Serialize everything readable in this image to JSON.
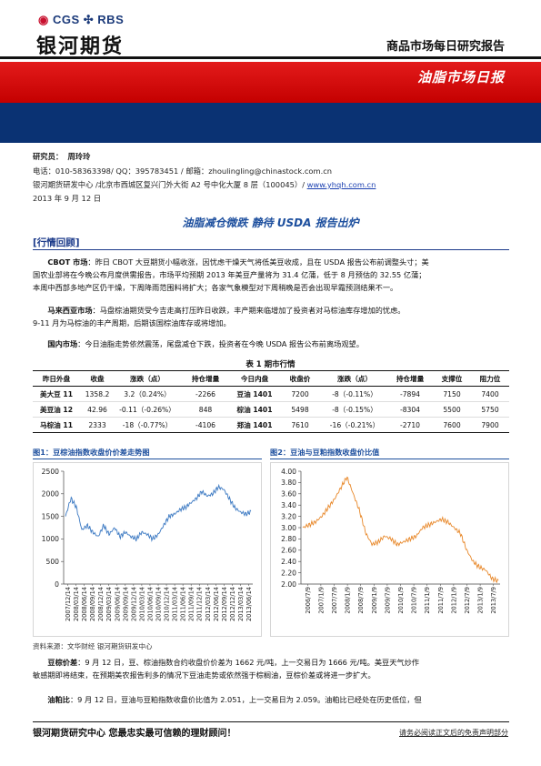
{
  "header": {
    "logo_cgs": "CGS",
    "logo_rbs": "RBS",
    "logo_name": "银河期货",
    "report_type": "商品市场每日研究报告",
    "band_title": "油脂市场日报"
  },
  "meta": {
    "researcher_label": "研究员：",
    "researcher_name": "周玲玲",
    "contact": "电话：010-58363398/ QQ：395783451 / 邮箱：zhoulingling@chinastock.com.cn",
    "address_prefix": "银河期货研发中心 /北京市西城区复兴门外大街 A2 号中化大厦 8 层（100045）/ ",
    "website": "www.yhqh.com.cn",
    "date": "2013 年 9 月 12 日"
  },
  "headline": "油脂减仓微跌 静待 USDA 报告出炉",
  "section_title": "[行情回顾]",
  "paragraphs": {
    "cbot_label": "CBOT 市场",
    "cbot_lines": [
      "：昨日 CBOT 大豆期货小幅收涨，因忧虑干燥天气将低美豆收成，且在 USDA 报告公布前调整头寸；美",
      "国农业部将在今晚公布月度供需报告，市场平均预期 2013 年美豆产量将为 31.4 亿蒲，低于 8 月预估的 32.55 亿蒲；",
      "本周中西部多地产区仍干燥，下周降雨范围料将扩大；各家气象模型对下周稍晚是否会出现早霜预测结果不一。"
    ],
    "malaysia_label": "马来西亚市场",
    "malaysia_lines": [
      "：马盘棕油期货受今吉走高打压昨日收跌，丰产期来临增加了投资者对马棕油库存增加的忧虑。",
      "9-11 月为马棕油的丰产周期，后期该国棕油库存或将增加。"
    ],
    "domestic_label": "国内市场",
    "domestic_text": "：今日油脂走势依然震荡，尾盘减仓下跌，投资者在今晚 USDA 报告公布前离场观望。"
  },
  "table": {
    "caption": "表 1   期市行情",
    "headers": [
      "昨日外盘",
      "收盘",
      "涨跌（点）",
      "持仓增量",
      "今日内盘",
      "收盘价",
      "涨跌（点）",
      "持仓增量",
      "支撑位",
      "阻力位"
    ],
    "rows": [
      [
        "美大豆 11",
        "1358.2",
        "3.2（0.24%）",
        "-2266",
        "豆油 1401",
        "7200",
        "-8（-0.11%）",
        "-7894",
        "7150",
        "7400"
      ],
      [
        "美豆油 12",
        "42.96",
        "-0.11（-0.26%）",
        "848",
        "棕油 1401",
        "5498",
        "-8（-0.15%）",
        "-8304",
        "5500",
        "5750"
      ],
      [
        "马棕油 11",
        "2333",
        "-18（-0.77%）",
        "-4106",
        "郑油 1401",
        "7610",
        "-16（-0.21%）",
        "-2710",
        "7600",
        "7900"
      ]
    ]
  },
  "chart_data": [
    {
      "type": "line",
      "title": "图1：豆棕油指数收盘价价差走势图",
      "xlabel": "",
      "ylabel": "",
      "ylim": [
        0,
        2500
      ],
      "yticks": [
        0,
        500,
        1000,
        1500,
        2000,
        2500
      ],
      "xticks": [
        "2007/12/14",
        "2008/03/14",
        "2008/06/14",
        "2008/09/14",
        "2008/12/14",
        "2009/03/14",
        "2009/06/14",
        "2009/09/14",
        "2009/12/14",
        "2010/03/14",
        "2010/06/14",
        "2010/09/14",
        "2010/12/14",
        "2011/03/14",
        "2011/06/14",
        "2011/09/14",
        "2011/12/14",
        "2012/03/14",
        "2012/06/14",
        "2012/09/14",
        "2012/12/14",
        "2013/03/14",
        "2013/06/14"
      ],
      "color": "#3a78c2",
      "series": [
        {
          "values": [
            1500,
            1900,
            1700,
            1200,
            1300,
            1150,
            1050,
            1300,
            1100,
            1250,
            1050,
            1150,
            1050,
            1000,
            1150,
            1100,
            1000,
            1100,
            1300,
            1500,
            1550,
            1650,
            1700,
            1800,
            1900,
            2050,
            1950,
            2000,
            2150,
            2100,
            1900,
            1700,
            1600,
            1550,
            1600
          ]
        }
      ]
    },
    {
      "type": "line",
      "title": "图2：豆油与豆粕指数收盘价比值",
      "xlabel": "",
      "ylabel": "",
      "ylim": [
        2.0,
        4.0
      ],
      "yticks": [
        2.0,
        2.2,
        2.4,
        2.6,
        2.8,
        3.0,
        3.2,
        3.4,
        3.6,
        3.8,
        4.0
      ],
      "xticks": [
        "2006/7/9",
        "2007/1/9",
        "2007/7/9",
        "2008/1/9",
        "2008/7/9",
        "2009/1/9",
        "2009/7/9",
        "2010/1/9",
        "2010/7/9",
        "2011/1/9",
        "2011/7/9",
        "2012/1/9",
        "2012/7/9",
        "2013/1/9",
        "2013/7/9"
      ],
      "color": "#e8882a",
      "series": [
        {
          "values": [
            3.0,
            3.05,
            3.1,
            3.2,
            3.35,
            3.5,
            3.7,
            3.9,
            3.6,
            3.3,
            2.9,
            2.7,
            2.75,
            2.85,
            2.8,
            2.7,
            2.75,
            2.8,
            2.85,
            3.0,
            3.05,
            3.1,
            3.15,
            3.1,
            3.0,
            2.9,
            2.6,
            2.4,
            2.3,
            2.25,
            2.1,
            2.05
          ]
        }
      ]
    }
  ],
  "footnote": "资料来源：文华财经   银河期货研发中心",
  "paragraphs2": {
    "spread_label": "豆棕价差",
    "spread_lines": [
      "：9 月 12 日，豆、棕油指数合约收盘价价差为 1662 元/吨，上一交易日为 1666 元/吨。美豆天气炒作",
      "敏感期即将结束，在预期美农报告利多的情况下豆油走势或依然强于棕榈油，豆棕价差或将进一步扩大。"
    ],
    "ratio_label": "油粕比",
    "ratio_text": "：9 月 12 日，豆油与豆粕指数收盘价比值为 2.051，上一交易日为 2.059。油粕比已经处在历史低位，但"
  },
  "footer": {
    "left": "银河期货研究中心  您最忠实最可信赖的理财顾问！",
    "right": "请务必阅读正文后的免责声明部分"
  }
}
